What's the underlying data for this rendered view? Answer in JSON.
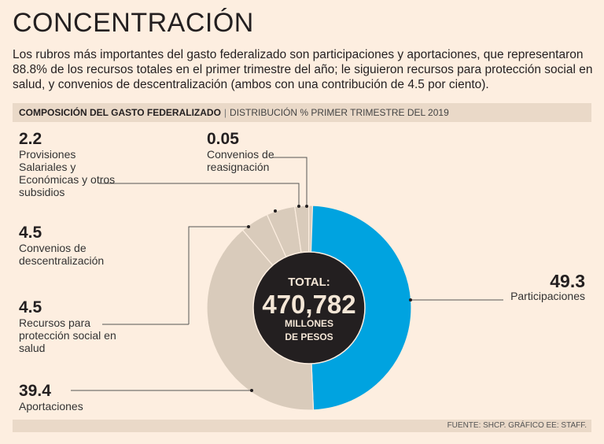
{
  "title": "CONCENTRACIÓN",
  "lead": "Los rubros más importantes del gasto federalizado son participaciones y aportaciones, que representaron 88.8% de los recursos totales en el primer trimestre del año; le siguieron recursos para protección social en salud, y convenios de descentralización (ambos con una contribución de 4.5 por ciento).",
  "bar": {
    "title": "COMPOSICIÓN DEL GASTO FEDERALIZADO",
    "separator": "|",
    "subtitle": "DISTRIBUCIÓN % PRIMER TRIMESTRE DEL 2019"
  },
  "center": {
    "label": "TOTAL:",
    "value": "470,782",
    "unit1": "MILLONES",
    "unit2": "DE PESOS"
  },
  "footer": "FUENTE: SHCP. GRÁFICO EE: STAFF.",
  "colors": {
    "highlight": "#00a3e0",
    "other": "#d9cbbb",
    "center": "#231f20"
  },
  "chart_data": {
    "type": "pie",
    "title": "COMPOSICIÓN DEL GASTO FEDERALIZADO",
    "subtitle": "DISTRIBUCIÓN % PRIMER TRIMESTRE DEL 2019",
    "total": "470,782 millones de pesos",
    "slices": [
      {
        "label": "Participaciones",
        "value": 49.3,
        "display": "49.3"
      },
      {
        "label": "Aportaciones",
        "value": 39.4,
        "display": "39.4"
      },
      {
        "label": "Recursos para protección social en salud",
        "value": 4.5,
        "display": "4.5"
      },
      {
        "label": "Convenios de descentralización",
        "value": 4.5,
        "display": "4.5"
      },
      {
        "label": "Provisiones Salariales y Económicas y otros subsidios",
        "value": 2.2,
        "display": "2.2"
      },
      {
        "label": "Convenios de reasignación",
        "value": 0.05,
        "display": "0.05"
      }
    ]
  }
}
